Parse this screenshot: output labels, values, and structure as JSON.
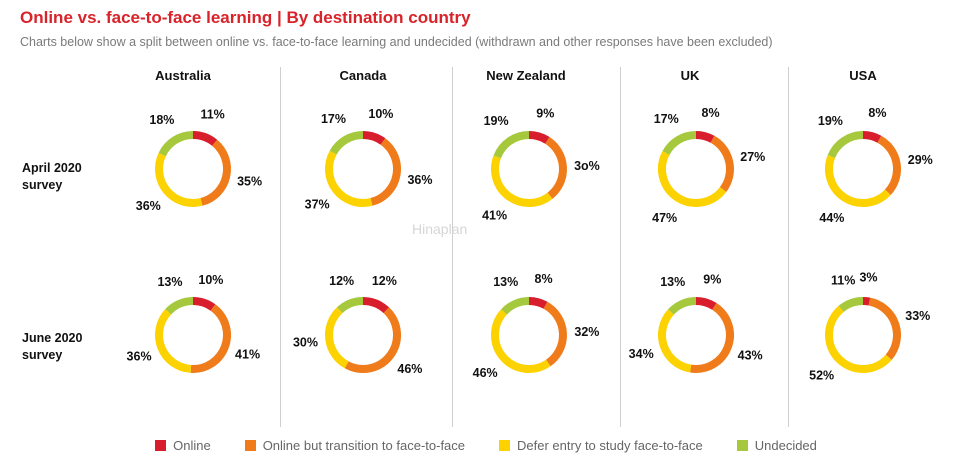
{
  "title": "Online vs. face-to-face learning | By destination country",
  "subtitle": "Charts below show a split between online vs. face-to-face learning and undecided (withdrawn and other responses have been excluded)",
  "rows": [
    "April 2020\nsurvey",
    "June 2020\nsurvey"
  ],
  "watermark": "Hinaplan",
  "colors": {
    "online": "#d81e2c",
    "transition": "#ef7b1a",
    "defer": "#fcd200",
    "undecided": "#a5c83c"
  },
  "chart_data": {
    "type": "donut",
    "countries": [
      "Australia",
      "Canada",
      "New Zealand",
      "UK",
      "USA"
    ],
    "surveys": [
      "April 2020 survey",
      "June 2020 survey"
    ],
    "series_names": [
      "Online",
      "Online but transition to face-to-face",
      "Defer entry to study face-to-face",
      "Undecided"
    ],
    "values": {
      "April 2020 survey": {
        "Australia": [
          11,
          35,
          36,
          18
        ],
        "Canada": [
          10,
          36,
          37,
          17
        ],
        "New Zealand": [
          9,
          30,
          41,
          19
        ],
        "UK": [
          8,
          27,
          47,
          17
        ],
        "USA": [
          8,
          29,
          44,
          19
        ]
      },
      "June 2020 survey": {
        "Australia": [
          10,
          41,
          36,
          13
        ],
        "Canada": [
          12,
          46,
          30,
          12
        ],
        "New Zealand": [
          8,
          32,
          46,
          13
        ],
        "UK": [
          9,
          43,
          34,
          13
        ],
        "USA": [
          3,
          33,
          52,
          11
        ]
      }
    },
    "labels": {
      "April 2020 survey": {
        "Australia": [
          "11%",
          "35%",
          "36%",
          "18%"
        ],
        "Canada": [
          "10%",
          "36%",
          "37%",
          "17%"
        ],
        "New Zealand": [
          "9%",
          "3o%",
          "41%",
          "19%"
        ],
        "UK": [
          "8%",
          "27%",
          "47%",
          "17%"
        ],
        "USA": [
          "8%",
          "29%",
          "44%",
          "19%"
        ]
      },
      "June 2020 survey": {
        "Australia": [
          "10%",
          "41%",
          "36%",
          "13%"
        ],
        "Canada": [
          "12%",
          "46%",
          "30%",
          "12%"
        ],
        "New Zealand": [
          "8%",
          "32%",
          "46%",
          "13%"
        ],
        "UK": [
          "9%",
          "43%",
          "34%",
          "13%"
        ],
        "USA": [
          "3%",
          "33%",
          "52%",
          "11%"
        ]
      }
    },
    "legend": [
      "Online",
      "Online but transition to face-to-face",
      "Defer entry to study face-to-face",
      "Undecided"
    ],
    "legend_position": "bottom"
  }
}
